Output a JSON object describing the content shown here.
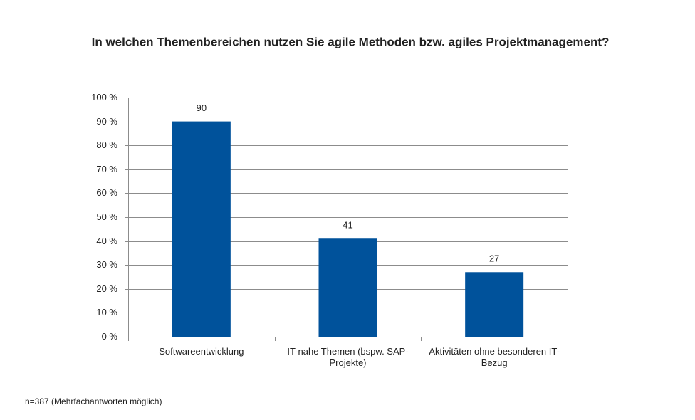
{
  "chart_data": {
    "type": "bar",
    "title": "In welchen Themenbereichen nutzen Sie agile Methoden bzw. agiles Projektmanagement?",
    "categories": [
      "Softwareentwicklung",
      "IT-nahe Themen (bspw. SAP-Projekte)",
      "Aktivitäten ohne besonderen IT-Bezug"
    ],
    "values": [
      90,
      41,
      27
    ],
    "color": "#00529b",
    "ylim": [
      0,
      100
    ],
    "yticks": [
      {
        "value": 0,
        "label": "0 %"
      },
      {
        "value": 10,
        "label": "10 %"
      },
      {
        "value": 20,
        "label": "20 %"
      },
      {
        "value": 30,
        "label": "30 %"
      },
      {
        "value": 40,
        "label": "40 %"
      },
      {
        "value": 50,
        "label": "50 %"
      },
      {
        "value": 60,
        "label": "60 %"
      },
      {
        "value": 70,
        "label": "70 %"
      },
      {
        "value": 80,
        "label": "80 %"
      },
      {
        "value": 90,
        "label": "90 %"
      },
      {
        "value": 100,
        "label": "100 %"
      }
    ],
    "grid": true,
    "footnote": "n=387 (Mehrfachantworten möglich)"
  }
}
